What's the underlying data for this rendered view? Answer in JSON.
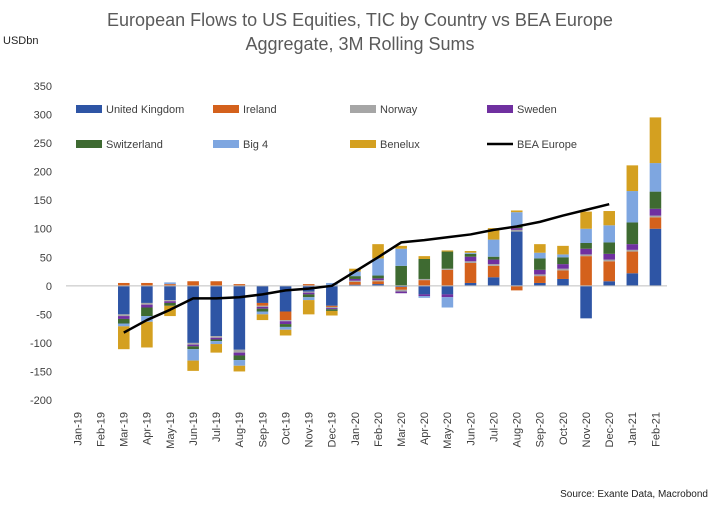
{
  "title_line1": "European Flows to US Equities, TIC by Country vs BEA Europe",
  "title_line2": "Aggregate, 3M Rolling Sums",
  "y_unit": "USDbn",
  "source": "Source: Exante Data, Macrobond",
  "chart_data": {
    "type": "bar",
    "stacked": true,
    "title": "European Flows to US Equities, TIC by Country vs BEA Europe Aggregate, 3M Rolling Sums",
    "ylabel": "USDbn",
    "ylim": [
      -200,
      350
    ],
    "yticks": [
      -200,
      -150,
      -100,
      -50,
      0,
      50,
      100,
      150,
      200,
      250,
      300,
      350
    ],
    "grid": false,
    "legend_position": "top",
    "categories": [
      "Jan-19",
      "Feb-19",
      "Mar-19",
      "Apr-19",
      "May-19",
      "Jun-19",
      "Jul-19",
      "Aug-19",
      "Sep-19",
      "Oct-19",
      "Nov-19",
      "Dec-19",
      "Jan-20",
      "Feb-20",
      "Mar-20",
      "Apr-20",
      "May-20",
      "Jun-20",
      "Jul-20",
      "Aug-20",
      "Sep-20",
      "Oct-20",
      "Nov-20",
      "Dec-20",
      "Jan-21",
      "Feb-21"
    ],
    "series": [
      {
        "name": "United Kingdom",
        "color": "#2e55a5",
        "values": [
          0,
          0,
          -50,
          -30,
          -25,
          -100,
          -88,
          -112,
          -30,
          -45,
          -10,
          -35,
          2,
          3,
          -2,
          -15,
          -15,
          5,
          15,
          95,
          5,
          12,
          -57,
          8,
          22,
          100
        ]
      },
      {
        "name": "Ireland",
        "color": "#d4611c",
        "values": [
          0,
          0,
          5,
          5,
          3,
          8,
          8,
          3,
          -5,
          -15,
          3,
          -2,
          5,
          5,
          -5,
          10,
          28,
          35,
          20,
          -8,
          12,
          15,
          52,
          35,
          38,
          20
        ]
      },
      {
        "name": "Norway",
        "color": "#a6a6a6",
        "values": [
          0,
          0,
          -3,
          -3,
          -2,
          -3,
          -3,
          -5,
          -2,
          -2,
          -2,
          -2,
          2,
          2,
          -3,
          2,
          2,
          3,
          3,
          3,
          3,
          3,
          3,
          3,
          3,
          3
        ]
      },
      {
        "name": "Sweden",
        "color": "#7030a0",
        "values": [
          0,
          0,
          -5,
          -5,
          -3,
          -3,
          -3,
          -5,
          -3,
          -5,
          -3,
          -2,
          3,
          3,
          -3,
          -3,
          -5,
          8,
          8,
          3,
          8,
          8,
          10,
          10,
          10,
          12
        ]
      },
      {
        "name": "Switzerland",
        "color": "#3e6a31",
        "values": [
          0,
          0,
          -8,
          -15,
          -5,
          -5,
          -3,
          -8,
          -5,
          -5,
          -5,
          -3,
          5,
          5,
          35,
          35,
          30,
          5,
          5,
          3,
          20,
          12,
          10,
          20,
          38,
          30
        ]
      },
      {
        "name": "Big 4",
        "color": "#7ea6e0",
        "values": [
          0,
          0,
          -5,
          -10,
          3,
          -20,
          -5,
          -10,
          -5,
          -5,
          -5,
          5,
          8,
          30,
          30,
          -3,
          -18,
          2,
          30,
          25,
          10,
          5,
          25,
          30,
          55,
          50
        ]
      },
      {
        "name": "Benelux",
        "color": "#d4a020",
        "values": [
          0,
          0,
          -40,
          -45,
          -18,
          -18,
          -15,
          -10,
          -10,
          -10,
          -25,
          -8,
          5,
          25,
          5,
          5,
          2,
          3,
          20,
          3,
          15,
          15,
          30,
          25,
          45,
          80
        ]
      }
    ],
    "line": {
      "name": "BEA Europe",
      "color": "#000000",
      "values": [
        null,
        null,
        -82,
        -60,
        -42,
        -22,
        -22,
        -20,
        -15,
        -8,
        -5,
        0,
        25,
        50,
        76,
        80,
        85,
        90,
        98,
        104,
        112,
        123,
        133,
        143,
        null,
        null
      ]
    }
  }
}
